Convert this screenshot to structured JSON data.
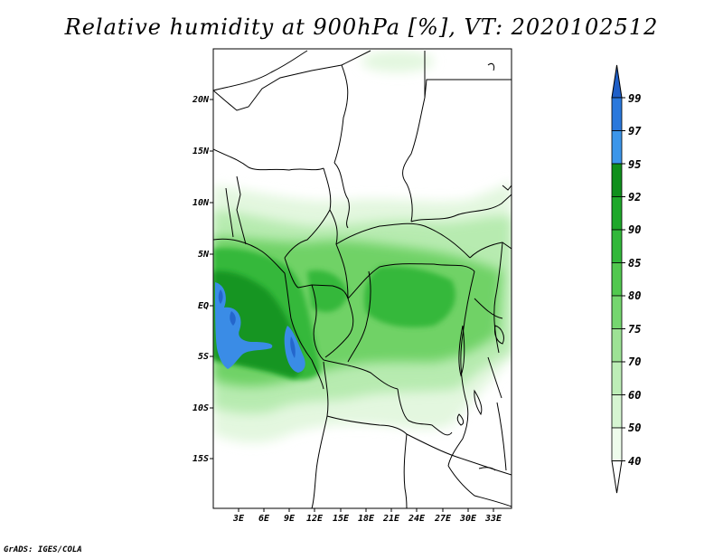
{
  "title": "Relative humidity at 900hPa [%], VT: 2020102512",
  "footer": "GrADS: IGES/COLA",
  "map": {
    "lat_labels": [
      "20N",
      "15N",
      "10N",
      "5N",
      "EQ",
      "5S",
      "10S",
      "15S"
    ],
    "lon_labels": [
      "3E",
      "6E",
      "9E",
      "12E",
      "15E",
      "18E",
      "21E",
      "24E",
      "27E",
      "30E",
      "33E"
    ]
  },
  "colorbar": {
    "labels": [
      "99",
      "97",
      "95",
      "92",
      "90",
      "85",
      "80",
      "75",
      "70",
      "60",
      "50",
      "40"
    ],
    "colors": [
      "#1f5fc8",
      "#2a78dc",
      "#3c96ea",
      "#0f8f1c",
      "#1ea82a",
      "#32b83a",
      "#52c84f",
      "#75d66f",
      "#9de295",
      "#bdedb7",
      "#d6f5d2",
      "#eefcec"
    ]
  }
}
